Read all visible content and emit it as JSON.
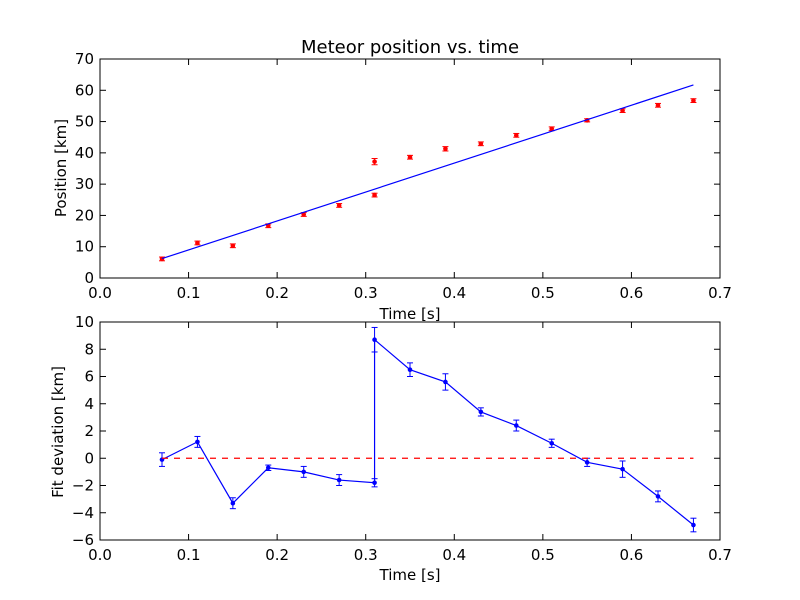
{
  "chart_data": [
    {
      "type": "scatter",
      "title": "Meteor position vs. time",
      "xlabel": "Time [s]",
      "ylabel": "Position [km]",
      "xlim": [
        0.0,
        0.7
      ],
      "ylim": [
        0,
        70
      ],
      "xticks": [
        "0.0",
        "0.1",
        "0.2",
        "0.3",
        "0.4",
        "0.5",
        "0.6",
        "0.7"
      ],
      "yticks": [
        "0",
        "10",
        "20",
        "30",
        "40",
        "50",
        "60",
        "70"
      ],
      "grid": false,
      "legend": "none",
      "series": [
        {
          "kind": "points-with-errorbars",
          "color": "#ff0000",
          "x": [
            0.07,
            0.11,
            0.15,
            0.19,
            0.23,
            0.27,
            0.31,
            0.31,
            0.35,
            0.39,
            0.43,
            0.47,
            0.51,
            0.55,
            0.59,
            0.63,
            0.67
          ],
          "y": [
            6.1,
            11.2,
            10.3,
            16.7,
            20.3,
            23.2,
            37.2,
            26.5,
            38.6,
            41.3,
            42.9,
            45.6,
            47.7,
            50.4,
            53.5,
            55.2,
            56.7
          ],
          "yerr": [
            0.6,
            0.6,
            0.6,
            0.6,
            0.6,
            0.6,
            1.0,
            0.6,
            0.6,
            0.7,
            0.6,
            0.6,
            0.6,
            0.5,
            0.6,
            0.6,
            0.6
          ]
        },
        {
          "kind": "fit-line",
          "color": "#0000ff",
          "x": [
            0.07,
            0.67
          ],
          "y": [
            6.2,
            61.7
          ]
        }
      ]
    },
    {
      "type": "line",
      "title": "",
      "xlabel": "Time [s]",
      "ylabel": "Fit deviation [km]",
      "xlim": [
        0.0,
        0.7
      ],
      "ylim": [
        -6,
        10
      ],
      "xticks": [
        "0.0",
        "0.1",
        "0.2",
        "0.3",
        "0.4",
        "0.5",
        "0.6",
        "0.7"
      ],
      "yticks": [
        "−6",
        "−4",
        "−2",
        "0",
        "2",
        "4",
        "6",
        "8",
        "10"
      ],
      "grid": false,
      "legend": "none",
      "series": [
        {
          "kind": "line-with-errorbars",
          "color": "#0000ff",
          "x": [
            0.07,
            0.11,
            0.15,
            0.19,
            0.23,
            0.27,
            0.31,
            0.31,
            0.35,
            0.39,
            0.43,
            0.47,
            0.51,
            0.55,
            0.59,
            0.63,
            0.67
          ],
          "y": [
            -0.1,
            1.2,
            -3.3,
            -0.7,
            -1.0,
            -1.6,
            -1.8,
            8.7,
            6.5,
            5.6,
            3.4,
            2.4,
            1.1,
            -0.3,
            -0.8,
            -2.8,
            -4.9
          ],
          "yerr": [
            0.5,
            0.4,
            0.4,
            0.2,
            0.4,
            0.4,
            0.3,
            0.9,
            0.5,
            0.6,
            0.3,
            0.4,
            0.3,
            0.3,
            0.6,
            0.4,
            0.5
          ]
        },
        {
          "kind": "zero-line",
          "color": "#ff0000",
          "dashed": true,
          "x": [
            0.07,
            0.67
          ],
          "y": [
            0,
            0
          ]
        }
      ]
    }
  ]
}
